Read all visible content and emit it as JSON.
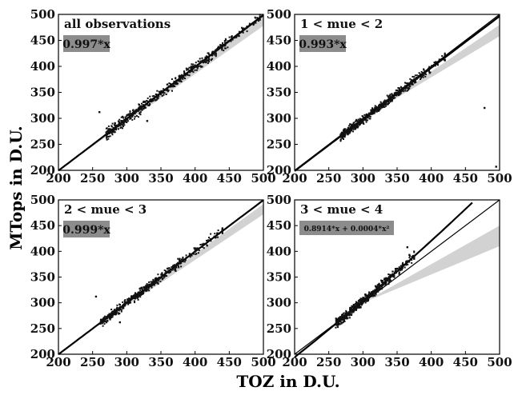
{
  "chart_data": [
    {
      "type": "scatter",
      "panel_label": "all observations",
      "fit_label": "0.997*x",
      "xlim": [
        200,
        500
      ],
      "ylim": [
        200,
        500
      ],
      "xticks": [
        200,
        250,
        300,
        350,
        400,
        450,
        500
      ],
      "yticks": [
        200,
        250,
        300,
        350,
        400,
        450,
        500
      ],
      "fit": [
        0,
        0.997,
        0
      ],
      "scatter": {
        "x_start": 230,
        "x_end": 495,
        "spread": 7
      },
      "band": {
        "start": 200,
        "lower_at_500": 478,
        "upper_at_500": 500
      },
      "outliers": [
        [
          260,
          312
        ],
        [
          330,
          295
        ],
        [
          470,
          470
        ]
      ]
    },
    {
      "type": "scatter",
      "panel_label": "1 < mue < 2",
      "fit_label": "0.993*x",
      "xlim": [
        200,
        500
      ],
      "ylim": [
        200,
        500
      ],
      "xticks": [
        200,
        250,
        300,
        350,
        400,
        450,
        500
      ],
      "yticks": [
        200,
        250,
        300,
        350,
        400,
        450,
        500
      ],
      "fit": [
        0,
        0.993,
        0
      ],
      "scatter": {
        "x_start": 240,
        "x_end": 420,
        "spread": 6
      },
      "band": {
        "start": 300,
        "lower_at_500": 458,
        "upper_at_500": 480
      },
      "outliers": [
        [
          478,
          320
        ],
        [
          495,
          207
        ]
      ]
    },
    {
      "type": "scatter",
      "panel_label": "2 < mue < 3",
      "fit_label": "0.999*x",
      "xlim": [
        200,
        500
      ],
      "ylim": [
        200,
        500
      ],
      "xticks": [
        200,
        250,
        300,
        350,
        400,
        450,
        500
      ],
      "yticks": [
        200,
        250,
        300,
        350,
        400,
        450,
        500
      ],
      "fit": [
        0,
        0.999,
        0
      ],
      "scatter": {
        "x_start": 230,
        "x_end": 440,
        "spread": 6
      },
      "band": {
        "start": 250,
        "lower_at_500": 472,
        "upper_at_500": 492
      },
      "outliers": [
        [
          255,
          312
        ],
        [
          290,
          262
        ]
      ]
    },
    {
      "type": "scatter",
      "panel_label": "3 < mue < 4",
      "fit_label": "0.8914*x + 0.0004*x²",
      "xlim": [
        200,
        500
      ],
      "ylim": [
        200,
        500
      ],
      "xticks": [
        200,
        250,
        300,
        350,
        400,
        450,
        500
      ],
      "yticks": [
        200,
        250,
        300,
        350,
        400,
        450,
        500
      ],
      "fit": [
        0,
        0.8914,
        0.0004
      ],
      "scatter": {
        "x_start": 240,
        "x_end": 375,
        "spread": 6
      },
      "band": {
        "start": 300,
        "lower_at_500": 410,
        "upper_at_500": 450
      },
      "outliers": [
        [
          365,
          408
        ],
        [
          368,
          393
        ]
      ]
    }
  ],
  "xlabel": "TOZ in D.U.",
  "ylabel": "MTops in D.U."
}
